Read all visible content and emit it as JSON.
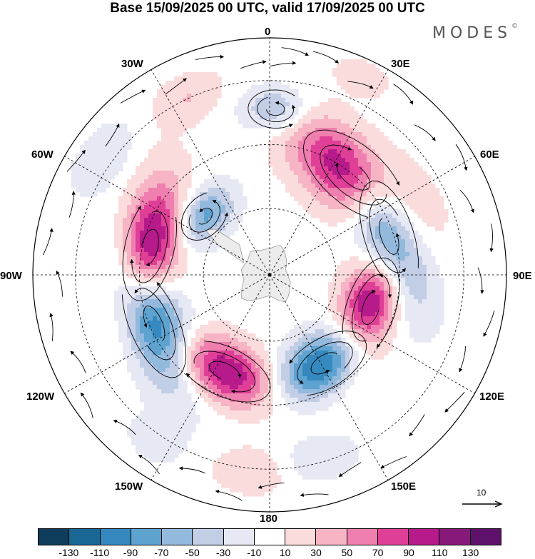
{
  "title": "Base 15/09/2025 00 UTC, valid 17/09/2025 00 UTC",
  "brand": {
    "name": "MODES",
    "mark": "©"
  },
  "map": {
    "projection": "south-polar-stereographic",
    "longitude_labels": {
      "lon_0": "0",
      "lon_30e": "30E",
      "lon_60e": "60E",
      "lon_90e": "90E",
      "lon_120e": "120E",
      "lon_150e": "150E",
      "lon_180": "180",
      "lon_150w": "150W",
      "lon_120w": "120W",
      "lon_90w": "90W",
      "lon_60w": "60W",
      "lon_30w": "30W"
    },
    "reference_vector": {
      "label": "10"
    },
    "land_color": "#ececec",
    "anomaly_centers": [
      {
        "lon": 40,
        "colat": 0.55,
        "value": 120,
        "sx": 0.22,
        "sy": 0.11
      },
      {
        "lon": 72,
        "colat": 0.53,
        "value": -130,
        "sx": 0.21,
        "sy": 0.09
      },
      {
        "lon": 108,
        "colat": 0.45,
        "value": 130,
        "sx": 0.19,
        "sy": 0.09
      },
      {
        "lon": 148,
        "colat": 0.44,
        "value": -125,
        "sx": 0.17,
        "sy": 0.09
      },
      {
        "lon": 205,
        "colat": 0.45,
        "value": 115,
        "sx": 0.18,
        "sy": 0.09
      },
      {
        "lon": 247,
        "colat": 0.53,
        "value": -130,
        "sx": 0.21,
        "sy": 0.09
      },
      {
        "lon": 283,
        "colat": 0.52,
        "value": 125,
        "sx": 0.2,
        "sy": 0.09
      },
      {
        "lon": 312,
        "colat": 0.37,
        "value": -80,
        "sx": 0.1,
        "sy": 0.07
      },
      {
        "lon": 2,
        "colat": 0.7,
        "value": -60,
        "sx": 0.1,
        "sy": 0.07
      },
      {
        "lon": 335,
        "colat": 0.82,
        "value": 30,
        "sx": 0.11,
        "sy": 0.07
      },
      {
        "lon": 305,
        "colat": 0.86,
        "value": -30,
        "sx": 0.12,
        "sy": 0.07
      },
      {
        "lon": 185,
        "colat": 0.83,
        "value": 30,
        "sx": 0.12,
        "sy": 0.07
      },
      {
        "lon": 165,
        "colat": 0.8,
        "value": -30,
        "sx": 0.12,
        "sy": 0.07
      },
      {
        "lon": 215,
        "colat": 0.85,
        "value": -20,
        "sx": 0.1,
        "sy": 0.07
      },
      {
        "lon": 25,
        "colat": 0.92,
        "value": 20,
        "sx": 0.1,
        "sy": 0.06
      }
    ]
  },
  "colorbar": {
    "colors": [
      "#0e3d5c",
      "#1a6796",
      "#3589bf",
      "#5ea3d0",
      "#93b9dd",
      "#c2cde6",
      "#e6e8f3",
      "#ffffff",
      "#fbdcdc",
      "#f6b4c4",
      "#ef7fae",
      "#df3f96",
      "#b71a8a",
      "#861979",
      "#5e116b"
    ],
    "levels": [
      -130,
      -110,
      -90,
      -70,
      -50,
      -30,
      -10,
      10,
      30,
      50,
      70,
      90,
      110,
      130
    ],
    "tick_labels": [
      "-130",
      "-110",
      "-90",
      "-70",
      "-50",
      "-30",
      "-10",
      "10",
      "30",
      "50",
      "70",
      "90",
      "110",
      "130"
    ]
  }
}
